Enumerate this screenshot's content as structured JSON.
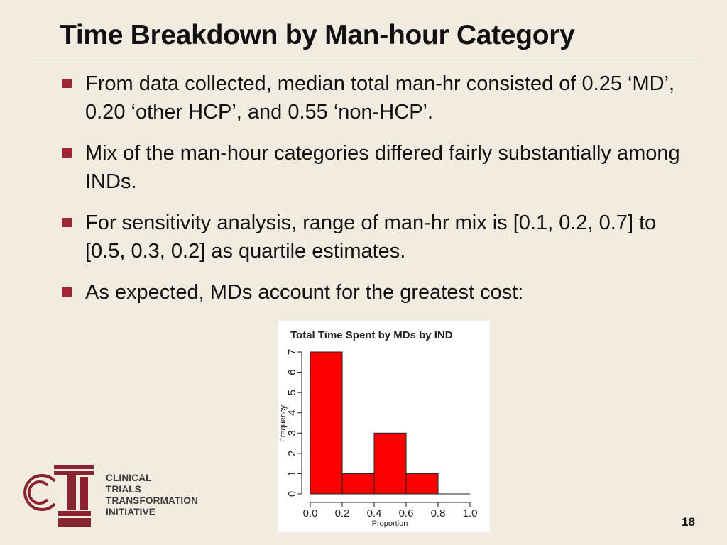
{
  "slide": {
    "title": "Time Breakdown by Man-hour Category",
    "page_number": "18"
  },
  "bullets": [
    {
      "text": "From data collected, median total man-hr consisted of 0.25 ‘MD’, 0.20 ‘other HCP’, and 0.55 ‘non-HCP’."
    },
    {
      "text": "Mix of the man-hour categories differed fairly substantially among INDs."
    },
    {
      "text": "For sensitivity analysis, range of man-hr mix is [0.1, 0.2, 0.7] to [0.5, 0.3, 0.2] as quartile estimates."
    },
    {
      "text": "As expected, MDs account for the greatest cost:"
    }
  ],
  "logo": {
    "letters": "CTI",
    "lines": [
      "CLINICAL",
      "TRIALS",
      "TRANSFORMATION",
      "INITIATIVE"
    ]
  },
  "colors": {
    "background": "#f2ebe0",
    "bullet_marker": "#a02535",
    "logo": "#8a2330",
    "bars": "#ff0000"
  },
  "chart_data": {
    "type": "bar",
    "title": "Total Time Spent by MDs by IND",
    "xlabel": "Proportion",
    "ylabel": "Frequency",
    "bins": [
      [
        0.0,
        0.2
      ],
      [
        0.2,
        0.4
      ],
      [
        0.4,
        0.6
      ],
      [
        0.6,
        0.8
      ],
      [
        0.8,
        1.0
      ]
    ],
    "values": [
      7,
      1,
      3,
      1,
      0
    ],
    "xlim": [
      0.0,
      1.0
    ],
    "ylim": [
      0,
      7
    ],
    "xticks": [
      "0.0",
      "0.2",
      "0.4",
      "0.6",
      "0.8",
      "1.0"
    ],
    "yticks": [
      "0",
      "1",
      "2",
      "3",
      "4",
      "5",
      "6",
      "7"
    ],
    "grid": false
  }
}
